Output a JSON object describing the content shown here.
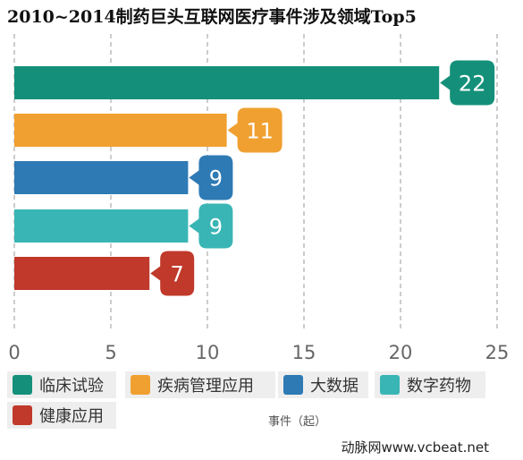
{
  "chart_data": {
    "type": "bar",
    "orientation": "horizontal",
    "title": "2010~2014制药巨头互联网医疗事件涉及领域Top5",
    "xlabel": "事件（起）",
    "xlim": [
      0,
      25
    ],
    "x_ticks": [
      "0",
      "5",
      "10",
      "15",
      "20",
      "25"
    ],
    "grid": "vertical dashed",
    "legend_position": "bottom",
    "categories": [
      "临床试验",
      "疾病管理应用",
      "大数据",
      "数字药物",
      "健康应用"
    ],
    "values": [
      22,
      11,
      9,
      9,
      7
    ],
    "value_labels": [
      "22",
      "11",
      "9",
      "9",
      "7"
    ],
    "colors": [
      "#14907a",
      "#f0a030",
      "#2e7ab5",
      "#3ab5b5",
      "#c0392b"
    ]
  },
  "watermark": "动脉网www.vcbeat.net"
}
